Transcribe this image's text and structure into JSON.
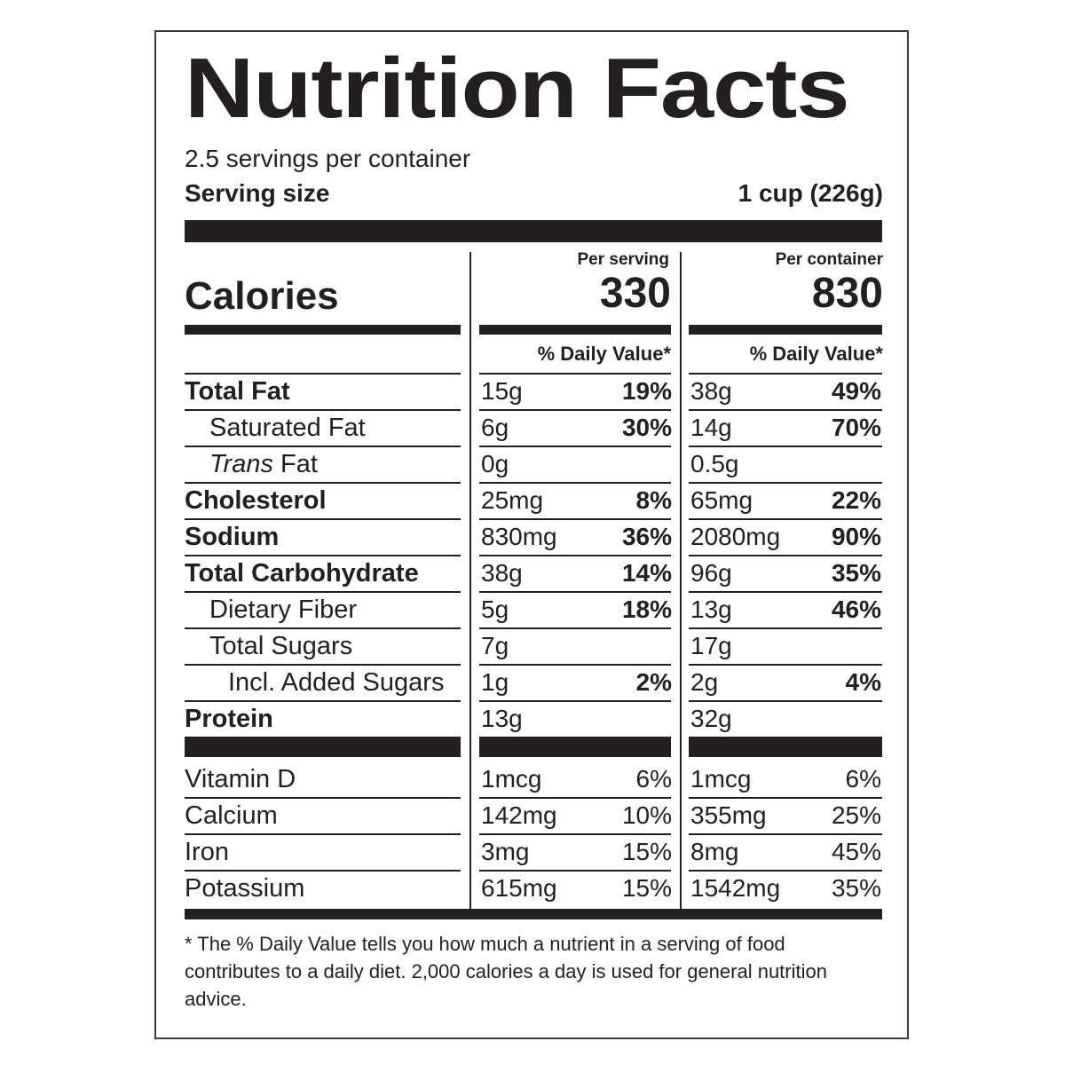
{
  "title": "Nutrition Facts",
  "servings_per_container": "2.5 servings per container",
  "serving_size_label": "Serving size",
  "serving_size_value": "1 cup (226g)",
  "calories_label": "Calories",
  "per_serving_label": "Per serving",
  "per_container_label": "Per container",
  "calories_per_serving": "330",
  "calories_per_container": "830",
  "daily_value_header": "% Daily Value*",
  "nutrients": [
    {
      "name": "Total Fat",
      "bold": true,
      "indent": 0,
      "serving_amount": "15g",
      "serving_dv": "19%",
      "container_amount": "38g",
      "container_dv": "49%"
    },
    {
      "name": "Saturated Fat",
      "bold": false,
      "indent": 1,
      "serving_amount": "6g",
      "serving_dv": "30%",
      "container_amount": "14g",
      "container_dv": "70%"
    },
    {
      "name_italic": "Trans",
      "name": " Fat",
      "bold": false,
      "indent": 1,
      "serving_amount": "0g",
      "serving_dv": "",
      "container_amount": "0.5g",
      "container_dv": ""
    },
    {
      "name": "Cholesterol",
      "bold": true,
      "indent": 0,
      "serving_amount": "25mg",
      "serving_dv": "8%",
      "container_amount": "65mg",
      "container_dv": "22%"
    },
    {
      "name": "Sodium",
      "bold": true,
      "indent": 0,
      "serving_amount": "830mg",
      "serving_dv": "36%",
      "container_amount": "2080mg",
      "container_dv": "90%"
    },
    {
      "name": "Total Carbohydrate",
      "bold": true,
      "indent": 0,
      "serving_amount": "38g",
      "serving_dv": "14%",
      "container_amount": "96g",
      "container_dv": "35%"
    },
    {
      "name": "Dietary Fiber",
      "bold": false,
      "indent": 1,
      "serving_amount": "5g",
      "serving_dv": "18%",
      "container_amount": "13g",
      "container_dv": "46%"
    },
    {
      "name": "Total Sugars",
      "bold": false,
      "indent": 1,
      "serving_amount": "7g",
      "serving_dv": "",
      "container_amount": "17g",
      "container_dv": ""
    },
    {
      "name": "Incl. Added Sugars",
      "bold": false,
      "indent": 2,
      "serving_amount": "1g",
      "serving_dv": "2%",
      "container_amount": "2g",
      "container_dv": "4%"
    },
    {
      "name": "Protein",
      "bold": true,
      "indent": 0,
      "serving_amount": "13g",
      "serving_dv": "",
      "container_amount": "32g",
      "container_dv": ""
    }
  ],
  "vitamins": [
    {
      "name": "Vitamin D",
      "serving_amount": "1mcg",
      "serving_dv": "6%",
      "container_amount": "1mcg",
      "container_dv": "6%"
    },
    {
      "name": "Calcium",
      "serving_amount": "142mg",
      "serving_dv": "10%",
      "container_amount": "355mg",
      "container_dv": "25%"
    },
    {
      "name": "Iron",
      "serving_amount": "3mg",
      "serving_dv": "15%",
      "container_amount": "8mg",
      "container_dv": "45%"
    },
    {
      "name": "Potassium",
      "serving_amount": "615mg",
      "serving_dv": "15%",
      "container_amount": "1542mg",
      "container_dv": "35%"
    }
  ],
  "footnote": "* The % Daily Value tells you how much a nutrient in a serving of food contributes to a daily diet. 2,000 calories a day is used for general nutrition advice."
}
